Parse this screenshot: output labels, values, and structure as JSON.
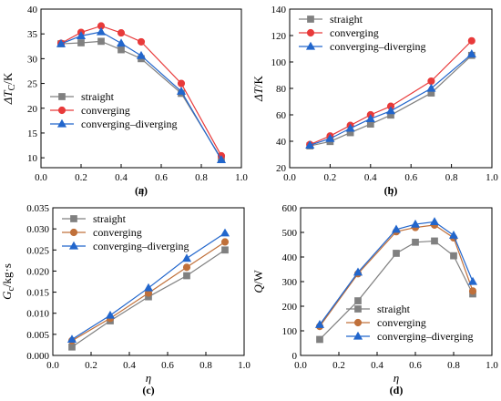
{
  "figure": {
    "background": "#ffffff",
    "series_styles": {
      "straight": {
        "color": "#808080",
        "marker": "square"
      },
      "converging": {
        "color": "#e83a3a",
        "marker": "circle"
      },
      "converging_brown": {
        "color": "#c0703a",
        "marker": "circle"
      },
      "converging_diverging": {
        "color": "#2266cc",
        "marker": "triangle"
      }
    }
  },
  "chart_data": [
    {
      "panel": "(a)",
      "type": "line",
      "xlabel": "η",
      "ylabel_main": "ΔT",
      "ylabel_sub": "C",
      "ylabel_unit": "/K",
      "xlim": [
        0.0,
        1.0
      ],
      "ylim": [
        8,
        40
      ],
      "xticks": [
        "0.0",
        "0.2",
        "0.4",
        "0.6",
        "0.8",
        "1.0"
      ],
      "yticks": [
        "10",
        "15",
        "20",
        "25",
        "30",
        "35",
        "40"
      ],
      "xtick_values": [
        0.0,
        0.2,
        0.4,
        0.6,
        0.8,
        1.0
      ],
      "ytick_values": [
        10,
        15,
        20,
        25,
        30,
        35,
        40
      ],
      "legend_position": "bottom-left",
      "series": [
        {
          "name": "straight",
          "style": "straight",
          "x": [
            0.1,
            0.2,
            0.3,
            0.4,
            0.5,
            0.7,
            0.9
          ],
          "y": [
            33.0,
            33.2,
            33.5,
            31.8,
            30.0,
            23.0,
            9.8
          ]
        },
        {
          "name": "converging",
          "style": "converging",
          "x": [
            0.1,
            0.2,
            0.3,
            0.4,
            0.5,
            0.7,
            0.9
          ],
          "y": [
            33.1,
            35.3,
            36.6,
            35.2,
            33.4,
            25.0,
            10.4
          ]
        },
        {
          "name": "converging–diverging",
          "style": "converging_diverging",
          "x": [
            0.1,
            0.2,
            0.3,
            0.4,
            0.5,
            0.7,
            0.9
          ],
          "y": [
            33.0,
            34.6,
            35.4,
            33.1,
            30.6,
            23.4,
            9.6
          ]
        }
      ]
    },
    {
      "panel": "(b)",
      "type": "line",
      "xlabel": "η",
      "ylabel_main": "ΔT",
      "ylabel_sub": "",
      "ylabel_unit": "/K",
      "xlim": [
        0.0,
        1.0
      ],
      "ylim": [
        20,
        140
      ],
      "xticks": [
        "0.0",
        "0.2",
        "0.4",
        "0.6",
        "0.8",
        "1.0"
      ],
      "yticks": [
        "20",
        "40",
        "60",
        "80",
        "100",
        "120",
        "140"
      ],
      "xtick_values": [
        0.0,
        0.2,
        0.4,
        0.6,
        0.8,
        1.0
      ],
      "ytick_values": [
        20,
        40,
        60,
        80,
        100,
        120,
        140
      ],
      "legend_position": "top-left",
      "series": [
        {
          "name": "straight",
          "style": "straight",
          "x": [
            0.1,
            0.2,
            0.3,
            0.4,
            0.5,
            0.7,
            0.9
          ],
          "y": [
            36.5,
            39.8,
            46.5,
            53.0,
            59.8,
            76.5,
            105.0
          ]
        },
        {
          "name": "converging",
          "style": "converging",
          "x": [
            0.1,
            0.2,
            0.3,
            0.4,
            0.5,
            0.7,
            0.9
          ],
          "y": [
            37.5,
            44.0,
            52.0,
            60.0,
            66.5,
            85.5,
            116.0
          ]
        },
        {
          "name": "converging–diverging",
          "style": "converging_diverging",
          "x": [
            0.1,
            0.2,
            0.3,
            0.4,
            0.5,
            0.7,
            0.9
          ],
          "y": [
            37.0,
            42.0,
            49.8,
            57.0,
            63.0,
            80.0,
            106.0
          ]
        }
      ]
    },
    {
      "panel": "(c)",
      "type": "line",
      "xlabel": "η",
      "ylabel_main": "G",
      "ylabel_sub": "c",
      "ylabel_unit": "/kg·s",
      "xlim": [
        0.0,
        1.0
      ],
      "ylim": [
        0.0,
        0.035
      ],
      "xticks": [
        "0.0",
        "0.2",
        "0.4",
        "0.6",
        "0.8",
        "1.0"
      ],
      "yticks": [
        "0.000",
        "0.005",
        "0.010",
        "0.015",
        "0.020",
        "0.025",
        "0.030",
        "0.035"
      ],
      "xtick_values": [
        0.0,
        0.2,
        0.4,
        0.6,
        0.8,
        1.0
      ],
      "ytick_values": [
        0.0,
        0.005,
        0.01,
        0.015,
        0.02,
        0.025,
        0.03,
        0.035
      ],
      "legend_position": "top-left",
      "series": [
        {
          "name": "straight",
          "style": "straight",
          "x": [
            0.1,
            0.3,
            0.5,
            0.7,
            0.9
          ],
          "y": [
            0.002,
            0.0082,
            0.0139,
            0.0189,
            0.025
          ]
        },
        {
          "name": "converging",
          "style": "converging_brown",
          "x": [
            0.1,
            0.3,
            0.5,
            0.7,
            0.9
          ],
          "y": [
            0.0035,
            0.0088,
            0.0148,
            0.0209,
            0.0269
          ]
        },
        {
          "name": "converging–diverging",
          "style": "converging_diverging",
          "x": [
            0.1,
            0.3,
            0.5,
            0.7,
            0.9
          ],
          "y": [
            0.0038,
            0.0095,
            0.016,
            0.023,
            0.029
          ]
        }
      ]
    },
    {
      "panel": "(d)",
      "type": "line",
      "xlabel": "η",
      "ylabel_main": "Q",
      "ylabel_sub": "",
      "ylabel_unit": "/W",
      "xlim": [
        0.0,
        1.0
      ],
      "ylim": [
        0,
        600
      ],
      "xticks": [
        "0.0",
        "0.2",
        "0.4",
        "0.6",
        "0.8",
        "1.0"
      ],
      "yticks": [
        "0",
        "100",
        "200",
        "300",
        "400",
        "500",
        "600"
      ],
      "xtick_values": [
        0.0,
        0.2,
        0.4,
        0.6,
        0.8,
        1.0
      ],
      "ytick_values": [
        0,
        100,
        200,
        300,
        400,
        500,
        600
      ],
      "legend_position": "bottom-center",
      "series": [
        {
          "name": "straight",
          "style": "straight",
          "x": [
            0.1,
            0.3,
            0.5,
            0.6,
            0.7,
            0.8,
            0.9
          ],
          "y": [
            65,
            222,
            415,
            460,
            465,
            405,
            250
          ]
        },
        {
          "name": "converging",
          "style": "converging_brown",
          "x": [
            0.1,
            0.3,
            0.5,
            0.6,
            0.7,
            0.8,
            0.9
          ],
          "y": [
            118,
            332,
            503,
            520,
            530,
            478,
            262
          ]
        },
        {
          "name": "converging–diverging",
          "style": "converging_diverging",
          "x": [
            0.1,
            0.3,
            0.5,
            0.6,
            0.7,
            0.8,
            0.9
          ],
          "y": [
            125,
            338,
            512,
            533,
            543,
            488,
            300
          ]
        }
      ]
    }
  ]
}
